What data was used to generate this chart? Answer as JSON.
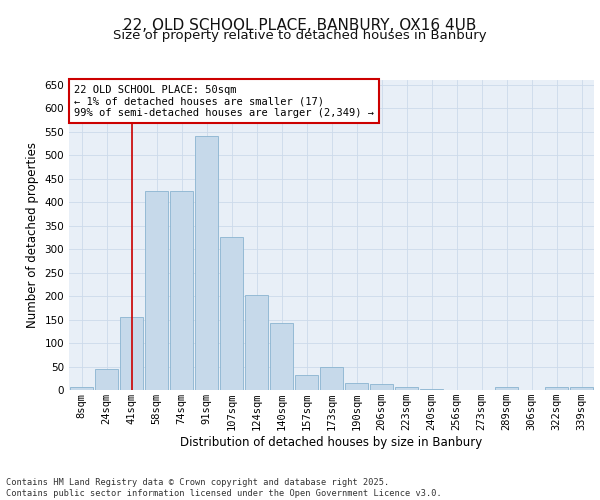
{
  "title": "22, OLD SCHOOL PLACE, BANBURY, OX16 4UB",
  "subtitle": "Size of property relative to detached houses in Banbury",
  "xlabel": "Distribution of detached houses by size in Banbury",
  "ylabel": "Number of detached properties",
  "categories": [
    "8sqm",
    "24sqm",
    "41sqm",
    "58sqm",
    "74sqm",
    "91sqm",
    "107sqm",
    "124sqm",
    "140sqm",
    "157sqm",
    "173sqm",
    "190sqm",
    "206sqm",
    "223sqm",
    "240sqm",
    "256sqm",
    "273sqm",
    "289sqm",
    "306sqm",
    "322sqm",
    "339sqm"
  ],
  "values": [
    7,
    45,
    155,
    423,
    423,
    540,
    325,
    203,
    143,
    33,
    50,
    14,
    13,
    6,
    2,
    1,
    0,
    6,
    0,
    7,
    7
  ],
  "bar_color": "#c6d9ea",
  "bar_edge_color": "#8ab4d0",
  "vline_color": "#cc0000",
  "grid_color": "#ccdaeb",
  "background_color": "#e8eff7",
  "annotation_text": "22 OLD SCHOOL PLACE: 50sqm\n← 1% of detached houses are smaller (17)\n99% of semi-detached houses are larger (2,349) →",
  "annotation_box_color": "#ffffff",
  "annotation_box_edge": "#cc0000",
  "footer": "Contains HM Land Registry data © Crown copyright and database right 2025.\nContains public sector information licensed under the Open Government Licence v3.0.",
  "ylim": [
    0,
    660
  ],
  "yticks": [
    0,
    50,
    100,
    150,
    200,
    250,
    300,
    350,
    400,
    450,
    500,
    550,
    600,
    650
  ],
  "title_fontsize": 11,
  "subtitle_fontsize": 9.5,
  "ylabel_fontsize": 8.5,
  "xlabel_fontsize": 8.5,
  "tick_fontsize": 7.5,
  "annotation_fontsize": 7.5,
  "footer_fontsize": 6.2,
  "vline_x_index": 2
}
